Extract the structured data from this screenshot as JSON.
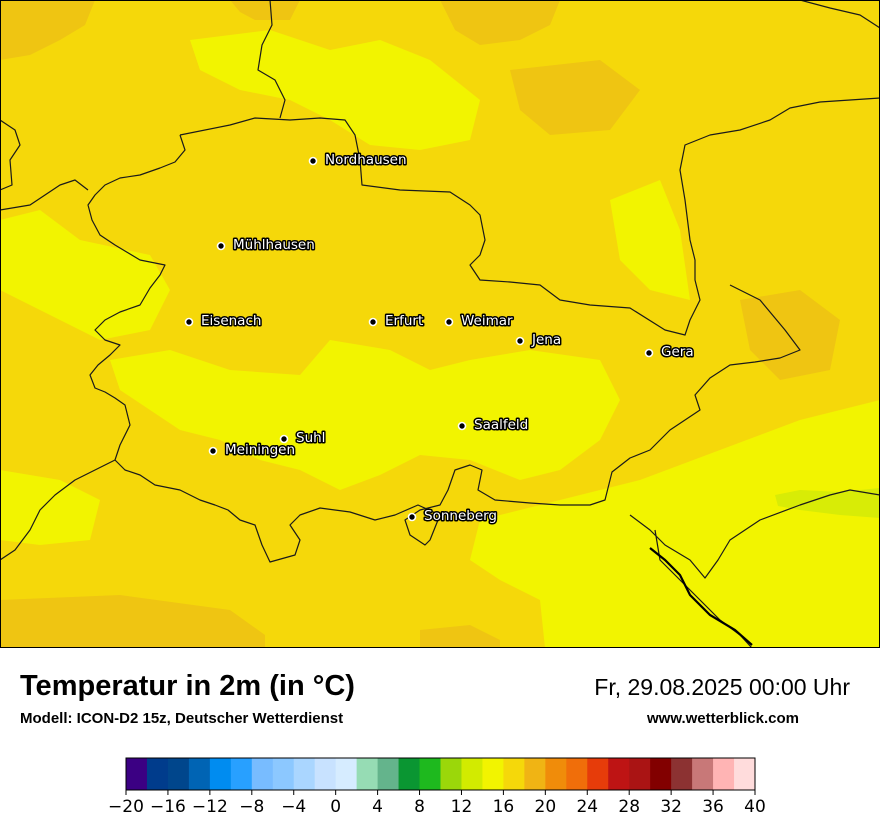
{
  "map": {
    "colors": {
      "background": "#f5d80a",
      "warm_patch": "#efc512",
      "cool_patch": "#f2f400",
      "cooler_patch": "#d8ec06",
      "border_line": "#1a1a1a"
    },
    "cities": [
      {
        "id": "nordhausen",
        "label": "Nordhausen"
      },
      {
        "id": "muehlhausen",
        "label": "Mühlhausen"
      },
      {
        "id": "eisenach",
        "label": "Eisenach"
      },
      {
        "id": "erfurt",
        "label": "Erfurt"
      },
      {
        "id": "weimar",
        "label": "Weimar"
      },
      {
        "id": "jena",
        "label": "Jena"
      },
      {
        "id": "gera",
        "label": "Gera"
      },
      {
        "id": "suhl",
        "label": "Suhl"
      },
      {
        "id": "meiningen",
        "label": "Meiningen"
      },
      {
        "id": "saalfeld",
        "label": "Saalfeld"
      },
      {
        "id": "sonneberg",
        "label": "Sonneberg"
      }
    ]
  },
  "header": {
    "title": "Temperatur in 2m (in °C)",
    "model": "Modell: ICON-D2 15z, Deutscher Wetterdienst",
    "datetime": "Fr, 29.08.2025 00:00 Uhr",
    "website": "www.wetterblick.com"
  },
  "legend": {
    "min": -20,
    "max": 40,
    "step": 2,
    "tick_labels": [
      "−20",
      "−16",
      "−12",
      "−8",
      "−4",
      "0",
      "4",
      "8",
      "12",
      "16",
      "20",
      "24",
      "28",
      "32",
      "36",
      "40"
    ],
    "colors": [
      "#3b0083",
      "#003c8c",
      "#00468c",
      "#0064b4",
      "#008cf0",
      "#28a0ff",
      "#78bcff",
      "#8cc8ff",
      "#aad6ff",
      "#c8e2ff",
      "#d6ecff",
      "#96dcb4",
      "#64b48c",
      "#0a9632",
      "#1eb91e",
      "#9bd70a",
      "#d2eb00",
      "#f2f400",
      "#f5d80a",
      "#f0b414",
      "#f08c0a",
      "#f06e0a",
      "#e63c0a",
      "#be1414",
      "#aa1414",
      "#820000",
      "#8c3232",
      "#c87878",
      "#ffb4b4",
      "#ffdcdc"
    ]
  }
}
